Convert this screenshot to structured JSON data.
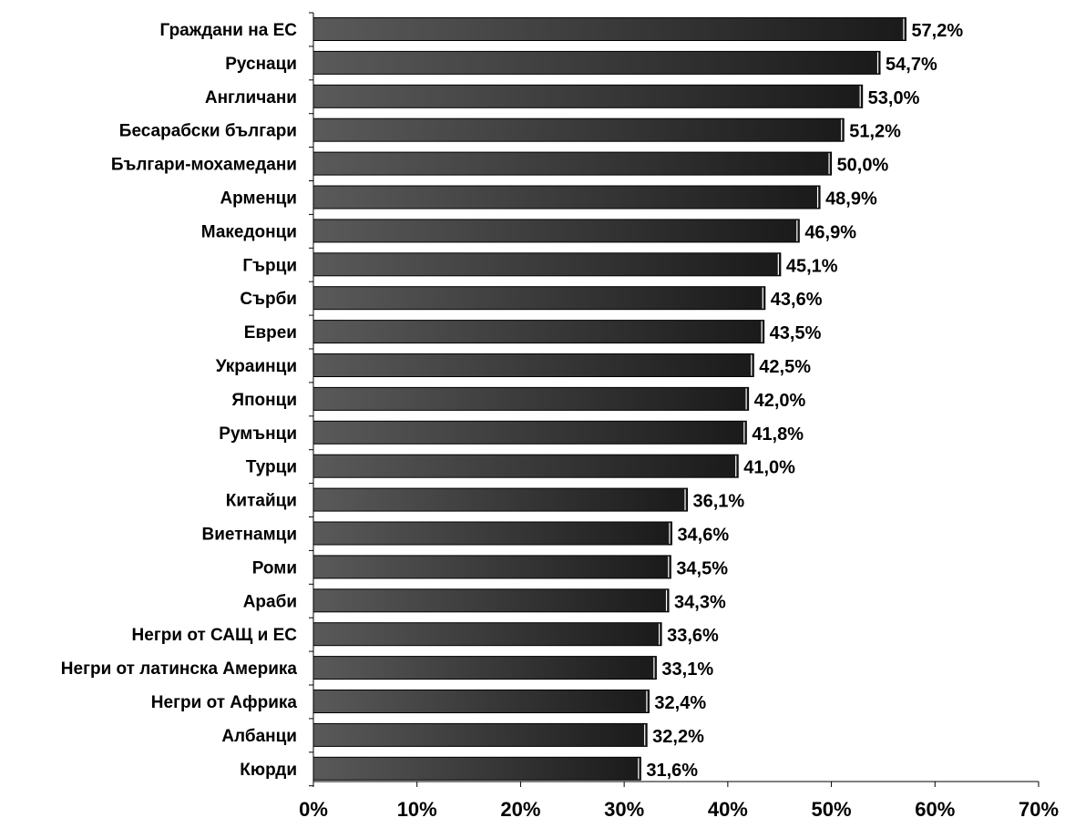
{
  "chart_data": {
    "type": "bar",
    "orientation": "horizontal",
    "categories": [
      "Граждани на ЕС",
      "Руснаци",
      "Англичани",
      "Бесарабски българи",
      "Българи-мохамедани",
      "Арменци",
      "Македонци",
      "Гърци",
      "Сърби",
      "Евреи",
      "Украинци",
      "Японци",
      "Румънци",
      "Турци",
      "Китайци",
      "Виетнамци",
      "Роми",
      "Араби",
      "Негри от САЩ и ЕС",
      "Негри от латинска Америка",
      "Негри от Африка",
      "Албанци",
      "Кюрди"
    ],
    "values": [
      57.2,
      54.7,
      53.0,
      51.2,
      50.0,
      48.9,
      46.9,
      45.1,
      43.6,
      43.5,
      42.5,
      42.0,
      41.8,
      41.0,
      36.1,
      34.6,
      34.5,
      34.3,
      33.6,
      33.1,
      32.4,
      32.2,
      31.6
    ],
    "value_labels": [
      "57,2%",
      "54,7%",
      "53,0%",
      "51,2%",
      "50,0%",
      "48,9%",
      "46,9%",
      "45,1%",
      "43,6%",
      "43,5%",
      "42,5%",
      "42,0%",
      "41,8%",
      "41,0%",
      "36,1%",
      "34,6%",
      "34,5%",
      "34,3%",
      "33,6%",
      "33,1%",
      "32,4%",
      "32,2%",
      "31,6%"
    ],
    "x_ticks": [
      "0%",
      "10%",
      "20%",
      "30%",
      "40%",
      "50%",
      "60%",
      "70%"
    ],
    "xlim": [
      0,
      70
    ],
    "title": "",
    "xlabel": "",
    "ylabel": "",
    "grid": false,
    "legend": "none",
    "bar_gradient": [
      "#5a5a5a",
      "#1a1a1a"
    ],
    "bar_edge_color": "#000000",
    "axis_color": "#000000"
  }
}
